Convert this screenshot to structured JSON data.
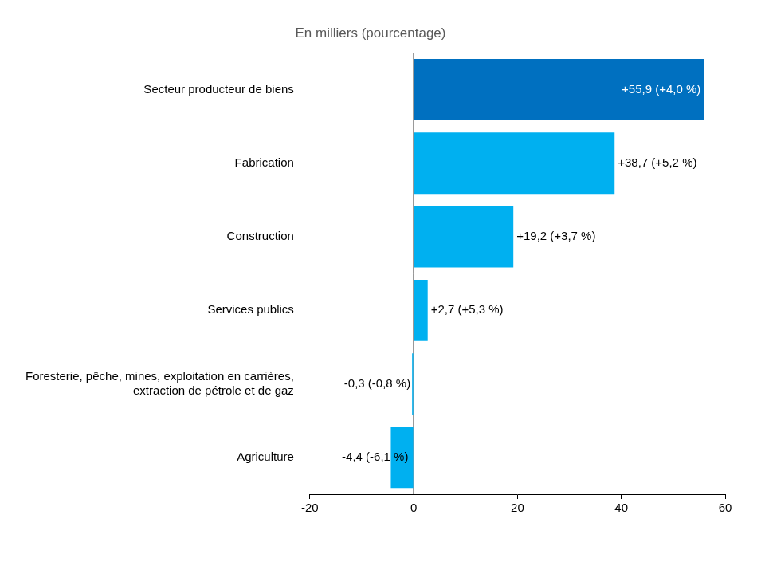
{
  "chart_data": {
    "type": "bar",
    "orientation": "horizontal",
    "title": "En milliers (pourcentage)",
    "categories": [
      "Secteur producteur de biens",
      "Fabrication",
      "Construction",
      "Services publics",
      "Foresterie, pêche, mines, exploitation en carrières, extraction de pétrole et de gaz",
      "Agriculture"
    ],
    "values": [
      55.9,
      38.7,
      19.2,
      2.7,
      -0.3,
      -4.4
    ],
    "value_labels": [
      "+55,9 (+4,0 %)",
      "+38,7 (+5,2 %)",
      "+19,2 (+3,7 %)",
      "+2,7 (+5,3 %)",
      "-0,3 (-0,8 %)",
      "-4,4 (-6,1 %)"
    ],
    "colors": [
      "#0070c0",
      "#00b0f0",
      "#00b0f0",
      "#00b0f0",
      "#00b0f0",
      "#00b0f0"
    ],
    "xlim": [
      -20,
      60
    ],
    "xticks": [
      -20,
      0,
      20,
      40,
      60
    ],
    "grid": false,
    "data_labels": true
  }
}
